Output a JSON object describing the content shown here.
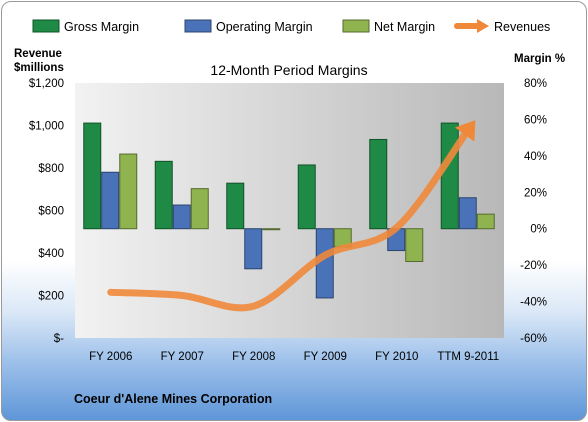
{
  "chart_data": {
    "type": "bar",
    "title": "12-Month Period Margins",
    "categories": [
      "FY 2006",
      "FY 2007",
      "FY 2008",
      "FY 2009",
      "FY 2010",
      "TTM 9-2011"
    ],
    "series": [
      {
        "name": "Gross Margin",
        "axis": "right",
        "color": "#1e8a45",
        "values": [
          58,
          37,
          25,
          35,
          49,
          58
        ]
      },
      {
        "name": "Operating Margin",
        "axis": "right",
        "color": "#4a72b8",
        "values": [
          31,
          13,
          -22,
          -38,
          -12,
          17
        ]
      },
      {
        "name": "Net Margin",
        "axis": "right",
        "color": "#8fb34f",
        "values": [
          41,
          22,
          0,
          -10,
          -18,
          8
        ]
      },
      {
        "name": "Revenues",
        "type": "line",
        "axis": "left",
        "color": "#f0883a",
        "values": [
          215,
          200,
          150,
          390,
          520,
          980
        ]
      }
    ],
    "left_axis": {
      "label_line1": "Revenue",
      "label_line2": "$millions",
      "range": [
        0,
        1200
      ],
      "ticks": [
        {
          "v": 0,
          "label": "$-"
        },
        {
          "v": 200,
          "label": "$200"
        },
        {
          "v": 400,
          "label": "$400"
        },
        {
          "v": 600,
          "label": "$600"
        },
        {
          "v": 800,
          "label": "$800"
        },
        {
          "v": 1000,
          "label": "$1,000"
        },
        {
          "v": 1200,
          "label": "$1,200"
        }
      ]
    },
    "right_axis": {
      "label": "Margin %",
      "range": [
        -60,
        80
      ],
      "ticks": [
        {
          "v": -60,
          "label": "-60%"
        },
        {
          "v": -40,
          "label": "-40%"
        },
        {
          "v": -20,
          "label": "-20%"
        },
        {
          "v": 0,
          "label": "0%"
        },
        {
          "v": 20,
          "label": "20%"
        },
        {
          "v": 40,
          "label": "40%"
        },
        {
          "v": 60,
          "label": "60%"
        },
        {
          "v": 80,
          "label": "80%"
        }
      ]
    },
    "grid": false,
    "legend": "top"
  },
  "footer": {
    "company": "Coeur d'Alene Mines Corporation"
  }
}
